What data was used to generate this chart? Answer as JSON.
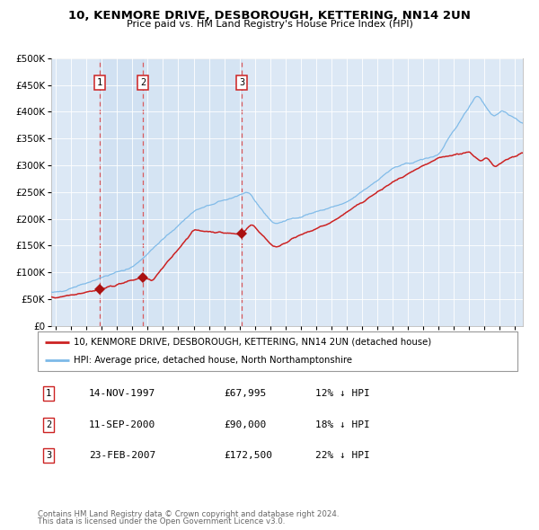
{
  "title": "10, KENMORE DRIVE, DESBOROUGH, KETTERING, NN14 2UN",
  "subtitle": "Price paid vs. HM Land Registry's House Price Index (HPI)",
  "legend_line1": "10, KENMORE DRIVE, DESBOROUGH, KETTERING, NN14 2UN (detached house)",
  "legend_line2": "HPI: Average price, detached house, North Northamptonshire",
  "footer1": "Contains HM Land Registry data © Crown copyright and database right 2024.",
  "footer2": "This data is licensed under the Open Government Licence v3.0.",
  "transactions": [
    {
      "num": "1",
      "date": "14-NOV-1997",
      "price": "£67,995",
      "x_year": 1997.87,
      "price_val": 67995,
      "hpi_pct": "12% ↓ HPI"
    },
    {
      "num": "2",
      "date": "11-SEP-2000",
      "price": "£90,000",
      "x_year": 2000.7,
      "price_val": 90000,
      "hpi_pct": "18% ↓ HPI"
    },
    {
      "num": "3",
      "date": "23-FEB-2007",
      "price": "£172,500",
      "x_year": 2007.14,
      "price_val": 172500,
      "hpi_pct": "22% ↓ HPI"
    }
  ],
  "hpi_color": "#7cb9e8",
  "price_color": "#cc2222",
  "marker_color": "#aa1111",
  "vline_color": "#dd4444",
  "box_edge_color": "#cc2222",
  "plot_bg": "#dce8f5",
  "ylim": [
    0,
    500000
  ],
  "yticks": [
    0,
    50000,
    100000,
    150000,
    200000,
    250000,
    300000,
    350000,
    400000,
    450000,
    500000
  ],
  "xlim_start": 1994.7,
  "xlim_end": 2025.5,
  "xticks": [
    1995,
    1996,
    1997,
    1998,
    1999,
    2000,
    2001,
    2002,
    2003,
    2004,
    2005,
    2006,
    2007,
    2008,
    2009,
    2010,
    2011,
    2012,
    2013,
    2014,
    2015,
    2016,
    2017,
    2018,
    2019,
    2020,
    2021,
    2022,
    2023,
    2024,
    2025
  ]
}
